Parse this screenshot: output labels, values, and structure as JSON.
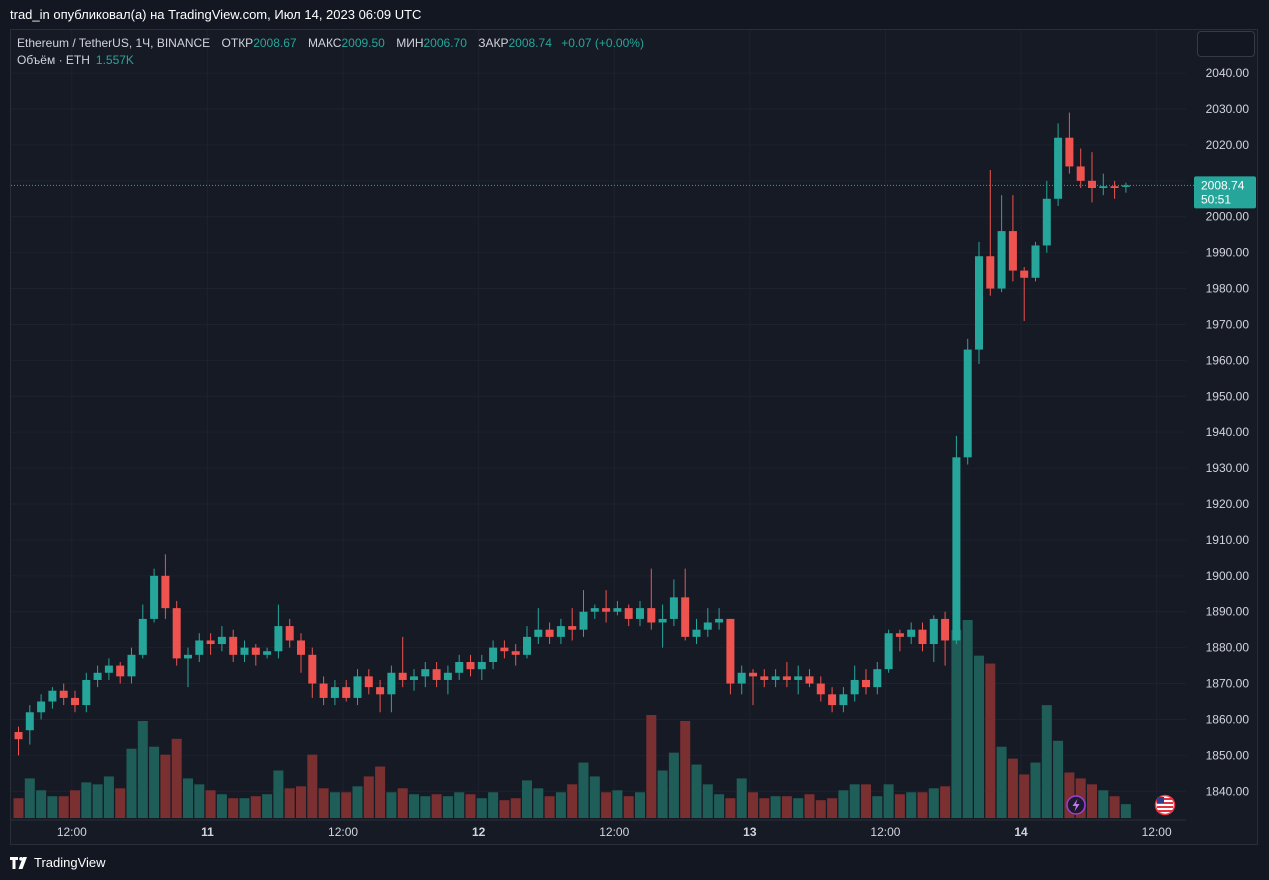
{
  "header": {
    "publisher_line": "trad_in опубликовал(а) на TradingView.com, Июл 14, 2023 06:09 UTC"
  },
  "legend": {
    "symbol": "Ethereum / TetherUS, 1Ч, BINANCE",
    "open_label": "ОТКР",
    "open_value": "2008.67",
    "high_label": "МАКС",
    "high_value": "2009.50",
    "low_label": "МИН",
    "low_value": "2006.70",
    "close_label": "ЗАКР",
    "close_value": "2008.74",
    "change": "+0.07 (+0.00%)",
    "volume_label": "Объём · ETH",
    "volume_value": "1.557K"
  },
  "last_price_tag": {
    "price": "2008.74",
    "countdown": "50:51"
  },
  "footer": {
    "brand": "TradingView"
  },
  "colors": {
    "up": "#26a69a",
    "down": "#ef5350",
    "background": "#131722",
    "grid": "#1e222d"
  },
  "icons": [
    "lightning-icon",
    "us-flag-icon",
    "tradingview-logo-icon"
  ],
  "chart_data": {
    "type": "candlestick",
    "title": "Ethereum / TetherUS, 1Ч, BINANCE",
    "x_tick_labels": [
      "12:00",
      "11",
      "12:00",
      "12",
      "12:00",
      "13",
      "12:00",
      "14",
      "12:00"
    ],
    "y_tick_labels": [
      "1840.00",
      "1850.00",
      "1860.00",
      "1870.00",
      "1880.00",
      "1890.00",
      "1900.00",
      "1910.00",
      "1920.00",
      "1930.00",
      "1940.00",
      "1950.00",
      "1960.00",
      "1970.00",
      "1980.00",
      "1990.00",
      "2000.00",
      "2010.00",
      "2020.00",
      "2030.00",
      "2040.00"
    ],
    "ylim": [
      1832,
      2052
    ],
    "grid": true,
    "last_price": 2008.74,
    "candles": [
      [
        1856.5,
        1854.5,
        1858,
        1850
      ],
      [
        1857,
        1862,
        1864,
        1853
      ],
      [
        1862,
        1865,
        1867,
        1860
      ],
      [
        1865,
        1868,
        1869,
        1863
      ],
      [
        1868,
        1866,
        1870,
        1864
      ],
      [
        1866,
        1864,
        1868,
        1862
      ],
      [
        1864,
        1871,
        1873,
        1862
      ],
      [
        1871,
        1873,
        1875,
        1869
      ],
      [
        1873,
        1875,
        1877,
        1871
      ],
      [
        1875,
        1872,
        1876,
        1870
      ],
      [
        1872,
        1878,
        1880,
        1870
      ],
      [
        1878,
        1888,
        1892,
        1877
      ],
      [
        1888,
        1900,
        1902,
        1887
      ],
      [
        1900,
        1891,
        1906,
        1888
      ],
      [
        1891,
        1877,
        1893,
        1875
      ],
      [
        1877,
        1878,
        1880,
        1869
      ],
      [
        1878,
        1882,
        1884,
        1876
      ],
      [
        1882,
        1881,
        1884,
        1878
      ],
      [
        1881,
        1883,
        1886,
        1879
      ],
      [
        1883,
        1878,
        1885,
        1876
      ],
      [
        1878,
        1880,
        1882,
        1876
      ],
      [
        1880,
        1878,
        1881,
        1875
      ],
      [
        1878,
        1879,
        1880,
        1877
      ],
      [
        1879,
        1886,
        1892,
        1877
      ],
      [
        1886,
        1882,
        1888,
        1880
      ],
      [
        1882,
        1878,
        1884,
        1873
      ],
      [
        1878,
        1870,
        1880,
        1866
      ],
      [
        1870,
        1866,
        1872,
        1864
      ],
      [
        1866,
        1869,
        1871,
        1864
      ],
      [
        1869,
        1866,
        1871,
        1865
      ],
      [
        1866,
        1872,
        1874,
        1864
      ],
      [
        1872,
        1869,
        1874,
        1867
      ],
      [
        1869,
        1867,
        1871,
        1862
      ],
      [
        1867,
        1873,
        1875,
        1862
      ],
      [
        1873,
        1871,
        1883,
        1869
      ],
      [
        1871,
        1872,
        1874,
        1868
      ],
      [
        1872,
        1874,
        1876,
        1869
      ],
      [
        1874,
        1871,
        1876,
        1869
      ],
      [
        1871,
        1873,
        1875,
        1867
      ],
      [
        1873,
        1876,
        1878,
        1871
      ],
      [
        1876,
        1874,
        1878,
        1872
      ],
      [
        1874,
        1876,
        1878,
        1871
      ],
      [
        1876,
        1880,
        1882,
        1874
      ],
      [
        1880,
        1879,
        1882,
        1877
      ],
      [
        1879,
        1878,
        1881,
        1875
      ],
      [
        1878,
        1883,
        1886,
        1877
      ],
      [
        1883,
        1885,
        1891,
        1881
      ],
      [
        1885,
        1883,
        1887,
        1881
      ],
      [
        1883,
        1886,
        1888,
        1881
      ],
      [
        1886,
        1885,
        1891,
        1882
      ],
      [
        1885,
        1890,
        1896,
        1883
      ],
      [
        1890,
        1891,
        1892,
        1888
      ],
      [
        1891,
        1890,
        1896,
        1887
      ],
      [
        1890,
        1891,
        1893,
        1889
      ],
      [
        1891,
        1888,
        1892,
        1886
      ],
      [
        1888,
        1891,
        1893,
        1886
      ],
      [
        1891,
        1887,
        1902,
        1885
      ],
      [
        1887,
        1888,
        1892,
        1880
      ],
      [
        1888,
        1894,
        1899,
        1886
      ],
      [
        1894,
        1883,
        1902,
        1882
      ],
      [
        1883,
        1885,
        1888,
        1881
      ],
      [
        1885,
        1887,
        1891,
        1883
      ],
      [
        1887,
        1888,
        1891,
        1885
      ],
      [
        1888,
        1870,
        1888,
        1867
      ],
      [
        1870,
        1873,
        1875,
        1867
      ],
      [
        1873,
        1872,
        1874,
        1864
      ],
      [
        1872,
        1871,
        1874,
        1869
      ],
      [
        1871,
        1872,
        1874,
        1869
      ],
      [
        1872,
        1871,
        1876,
        1869
      ],
      [
        1871,
        1872,
        1875,
        1867
      ],
      [
        1872,
        1870,
        1874,
        1869
      ],
      [
        1870,
        1867,
        1872,
        1865
      ],
      [
        1867,
        1864,
        1869,
        1862
      ],
      [
        1864,
        1867,
        1869,
        1862
      ],
      [
        1867,
        1871,
        1875,
        1865
      ],
      [
        1871,
        1869,
        1874,
        1867
      ],
      [
        1869,
        1874,
        1876,
        1867
      ],
      [
        1874,
        1884,
        1885,
        1873
      ],
      [
        1884,
        1883,
        1885,
        1879
      ],
      [
        1883,
        1885,
        1887,
        1881
      ],
      [
        1885,
        1881,
        1887,
        1879
      ],
      [
        1881,
        1888,
        1889,
        1876
      ],
      [
        1888,
        1882,
        1890,
        1875
      ],
      [
        1882,
        1933,
        1939,
        1881
      ],
      [
        1933,
        1963,
        1966,
        1931
      ],
      [
        1963,
        1989,
        1993,
        1959
      ],
      [
        1989,
        1980,
        2013,
        1978
      ],
      [
        1980,
        1996,
        2006,
        1979
      ],
      [
        1996,
        1985,
        2006,
        1982
      ],
      [
        1985,
        1983,
        1986,
        1971
      ],
      [
        1983,
        1992,
        1993,
        1982
      ],
      [
        1992,
        2005,
        2010,
        1990
      ],
      [
        2005,
        2022,
        2026,
        2003
      ],
      [
        2022,
        2014,
        2029,
        2012
      ],
      [
        2014,
        2010,
        2019,
        2008
      ],
      [
        2010,
        2008,
        2018,
        2004
      ],
      [
        2008,
        2008.5,
        2012,
        2006
      ],
      [
        2008.5,
        2008,
        2010,
        2005
      ],
      [
        2008.67,
        2008.74,
        2009.5,
        2006.7
      ]
    ],
    "volume": [
      10,
      20,
      14,
      11,
      11,
      14,
      18,
      17,
      21,
      15,
      35,
      49,
      36,
      32,
      40,
      20,
      17,
      14,
      12,
      10,
      10,
      11,
      12,
      24,
      15,
      16,
      32,
      15,
      13,
      13,
      16,
      21,
      26,
      13,
      15,
      12,
      11,
      12,
      11,
      13,
      12,
      10,
      13,
      9,
      10,
      19,
      15,
      11,
      13,
      17,
      28,
      21,
      13,
      14,
      11,
      13,
      52,
      24,
      33,
      49,
      27,
      17,
      12,
      10,
      20,
      13,
      10,
      11,
      11,
      10,
      12,
      9,
      10,
      14,
      17,
      17,
      11,
      17,
      12,
      13,
      13,
      15,
      16,
      95,
      100,
      82,
      78,
      36,
      30,
      22,
      28,
      57,
      39,
      23,
      20,
      17,
      14,
      11,
      7
    ],
    "volume_max": 100
  }
}
